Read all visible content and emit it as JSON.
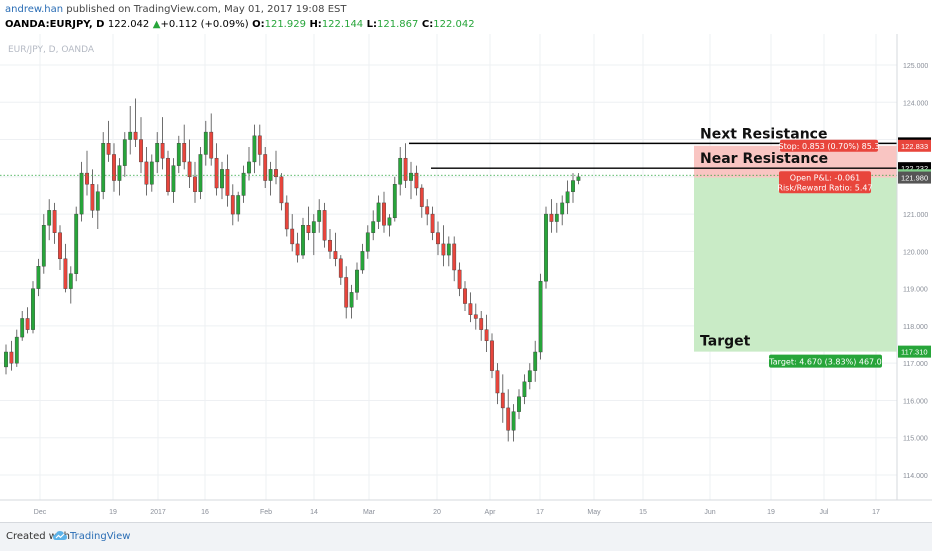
{
  "header": {
    "author": "andrew.han",
    "published": "published on TradingView.com, May 01, 2017 19:08 EST",
    "symbol": "OANDA:EURJPY, D",
    "last": "122.042",
    "change_arrow": "▲",
    "change": "+0.112 (+0.09%)",
    "o_label": "O:",
    "o_value": "121.929",
    "h_label": "H:",
    "h_value": "122.144",
    "l_label": "L:",
    "l_value": "121.867",
    "c_label": "C:",
    "c_value": "122.042"
  },
  "footer": {
    "created_with": "Created with",
    "brand": "TradingView",
    "logo_icon": "tradingview-cloud-icon"
  },
  "colors": {
    "up": "#27a53a",
    "down": "#e8453c",
    "grid": "#eef0f3",
    "stop_zone": "#f9c5c2",
    "target_zone": "#c9ebc6"
  },
  "chart_data": {
    "type": "candlestick",
    "watermark": "EUR/JPY, D, OANDA",
    "y_ticks": [
      "114.000",
      "115.000",
      "116.000",
      "117.000",
      "118.000",
      "119.000",
      "120.000",
      "121.000",
      "122.000",
      "123.000",
      "124.000",
      "125.000"
    ],
    "ylim": [
      113.5,
      125.8
    ],
    "x_ticks": [
      "Dec",
      "19",
      "2017",
      "16",
      "Feb",
      "14",
      "Mar",
      "20",
      "Apr",
      "17",
      "May",
      "15",
      "Jun",
      "19",
      "Jul",
      "17"
    ],
    "ohlc": [
      [
        116.9,
        117.5,
        116.7,
        117.3
      ],
      [
        117.3,
        117.6,
        116.8,
        117.0
      ],
      [
        117.0,
        117.9,
        116.9,
        117.7
      ],
      [
        117.7,
        118.4,
        117.6,
        118.2
      ],
      [
        118.2,
        118.5,
        117.8,
        117.9
      ],
      [
        117.9,
        119.2,
        117.8,
        119.0
      ],
      [
        119.0,
        119.8,
        118.8,
        119.6
      ],
      [
        119.6,
        121.0,
        119.4,
        120.7
      ],
      [
        120.7,
        121.4,
        120.3,
        121.1
      ],
      [
        121.1,
        121.3,
        120.2,
        120.5
      ],
      [
        120.5,
        120.7,
        119.5,
        119.8
      ],
      [
        119.8,
        120.2,
        118.9,
        119.0
      ],
      [
        119.0,
        119.6,
        118.6,
        119.4
      ],
      [
        119.4,
        121.2,
        119.2,
        121.0
      ],
      [
        121.0,
        122.4,
        120.8,
        122.1
      ],
      [
        122.1,
        122.7,
        121.5,
        121.8
      ],
      [
        121.8,
        122.2,
        120.9,
        121.1
      ],
      [
        121.1,
        121.8,
        120.6,
        121.6
      ],
      [
        121.6,
        123.2,
        121.4,
        122.9
      ],
      [
        122.9,
        123.5,
        122.4,
        122.6
      ],
      [
        122.6,
        122.9,
        121.6,
        121.9
      ],
      [
        121.9,
        122.5,
        121.5,
        122.3
      ],
      [
        122.3,
        123.2,
        122.0,
        123.0
      ],
      [
        123.0,
        123.9,
        122.6,
        123.2
      ],
      [
        123.2,
        124.1,
        122.8,
        123.0
      ],
      [
        123.0,
        123.6,
        122.1,
        122.4
      ],
      [
        122.4,
        122.8,
        121.5,
        121.8
      ],
      [
        121.8,
        122.6,
        121.6,
        122.4
      ],
      [
        122.4,
        123.2,
        122.1,
        122.9
      ],
      [
        122.9,
        123.6,
        122.2,
        122.5
      ],
      [
        122.5,
        122.7,
        121.5,
        121.6
      ],
      [
        121.6,
        122.5,
        121.3,
        122.3
      ],
      [
        122.3,
        123.1,
        122.1,
        122.9
      ],
      [
        122.9,
        123.4,
        122.2,
        122.4
      ],
      [
        122.4,
        123.0,
        121.7,
        122.0
      ],
      [
        122.0,
        122.4,
        121.3,
        121.6
      ],
      [
        121.6,
        122.8,
        121.4,
        122.6
      ],
      [
        122.6,
        123.5,
        122.3,
        123.2
      ],
      [
        123.2,
        123.7,
        122.3,
        122.5
      ],
      [
        122.5,
        122.9,
        121.5,
        121.7
      ],
      [
        121.7,
        122.4,
        121.4,
        122.2
      ],
      [
        122.2,
        122.6,
        121.2,
        121.5
      ],
      [
        121.5,
        121.8,
        120.7,
        121.0
      ],
      [
        121.0,
        121.6,
        120.8,
        121.5
      ],
      [
        121.5,
        122.3,
        121.3,
        122.1
      ],
      [
        122.1,
        122.8,
        121.9,
        122.4
      ],
      [
        122.4,
        123.4,
        122.1,
        123.1
      ],
      [
        123.1,
        123.4,
        122.3,
        122.6
      ],
      [
        122.6,
        122.8,
        121.7,
        121.9
      ],
      [
        121.9,
        122.4,
        121.5,
        122.2
      ],
      [
        122.2,
        122.7,
        121.8,
        122.0
      ],
      [
        122.0,
        122.1,
        121.1,
        121.3
      ],
      [
        121.3,
        121.5,
        120.4,
        120.6
      ],
      [
        120.6,
        121.0,
        120.0,
        120.2
      ],
      [
        120.2,
        120.5,
        119.7,
        119.9
      ],
      [
        119.9,
        120.9,
        119.8,
        120.7
      ],
      [
        120.7,
        121.2,
        120.3,
        120.5
      ],
      [
        120.5,
        121.0,
        119.9,
        120.8
      ],
      [
        120.8,
        121.4,
        120.5,
        121.1
      ],
      [
        121.1,
        121.3,
        120.1,
        120.3
      ],
      [
        120.3,
        120.6,
        119.8,
        120.0
      ],
      [
        120.0,
        120.5,
        119.6,
        119.8
      ],
      [
        119.8,
        119.9,
        119.1,
        119.3
      ],
      [
        119.3,
        119.6,
        118.2,
        118.5
      ],
      [
        118.5,
        119.1,
        118.2,
        118.9
      ],
      [
        118.9,
        119.7,
        118.7,
        119.5
      ],
      [
        119.5,
        120.2,
        119.4,
        120.0
      ],
      [
        120.0,
        120.7,
        119.8,
        120.5
      ],
      [
        120.5,
        121.1,
        120.3,
        120.8
      ],
      [
        120.8,
        121.5,
        120.6,
        121.3
      ],
      [
        121.3,
        121.6,
        120.5,
        120.7
      ],
      [
        120.7,
        121.0,
        120.4,
        120.9
      ],
      [
        120.9,
        122.0,
        120.8,
        121.8
      ],
      [
        121.8,
        122.8,
        121.5,
        122.5
      ],
      [
        122.5,
        122.9,
        121.7,
        121.9
      ],
      [
        121.9,
        122.4,
        121.4,
        122.1
      ],
      [
        122.1,
        122.3,
        121.5,
        121.7
      ],
      [
        121.7,
        121.8,
        120.9,
        121.2
      ],
      [
        121.2,
        121.4,
        120.7,
        121.0
      ],
      [
        121.0,
        121.2,
        120.3,
        120.5
      ],
      [
        120.5,
        120.8,
        119.9,
        120.2
      ],
      [
        120.2,
        120.7,
        119.6,
        119.9
      ],
      [
        119.9,
        120.4,
        119.6,
        120.2
      ],
      [
        120.2,
        120.4,
        119.2,
        119.5
      ],
      [
        119.5,
        119.7,
        118.8,
        119.0
      ],
      [
        119.0,
        119.2,
        118.4,
        118.6
      ],
      [
        118.6,
        118.9,
        118.1,
        118.3
      ],
      [
        118.3,
        118.6,
        117.9,
        118.2
      ],
      [
        118.2,
        118.4,
        117.6,
        117.9
      ],
      [
        117.9,
        118.3,
        117.3,
        117.6
      ],
      [
        117.6,
        117.8,
        116.6,
        116.8
      ],
      [
        116.8,
        117.0,
        115.9,
        116.2
      ],
      [
        116.2,
        116.7,
        115.4,
        115.8
      ],
      [
        115.8,
        116.3,
        114.9,
        115.2
      ],
      [
        115.2,
        115.9,
        114.9,
        115.7
      ],
      [
        115.7,
        116.3,
        115.5,
        116.1
      ],
      [
        116.1,
        116.7,
        115.9,
        116.5
      ],
      [
        116.5,
        117.0,
        116.3,
        116.8
      ],
      [
        116.8,
        117.6,
        116.5,
        117.3
      ],
      [
        117.3,
        119.4,
        117.1,
        119.2
      ],
      [
        119.2,
        121.2,
        119.0,
        121.0
      ],
      [
        121.0,
        121.4,
        120.5,
        120.8
      ],
      [
        120.8,
        121.3,
        120.5,
        121.0
      ],
      [
        121.0,
        121.5,
        120.7,
        121.3
      ],
      [
        121.3,
        121.9,
        121.0,
        121.6
      ],
      [
        121.6,
        122.1,
        121.3,
        121.9
      ],
      [
        121.9,
        122.1,
        121.8,
        122.0
      ]
    ],
    "levels": [
      {
        "label": "Next Resistance",
        "price": 122.897
      },
      {
        "label": "Near Resistance",
        "price": 122.232
      }
    ],
    "position": {
      "stop_price": "122.833",
      "entry_price": "121.980",
      "target_price": "117.310",
      "current_price": "122.042",
      "resistance_top": "122.897",
      "resistance_near": "122.232",
      "stop_label": "Stop: 0.853 (0.70%) 85.3",
      "pnl_label": "Open P&L: -0.061",
      "rr_label": "Risk/Reward Ratio: 5.47",
      "target_label": "Target: 4.670 (3.83%) 467.0",
      "target_text": "Target"
    }
  }
}
